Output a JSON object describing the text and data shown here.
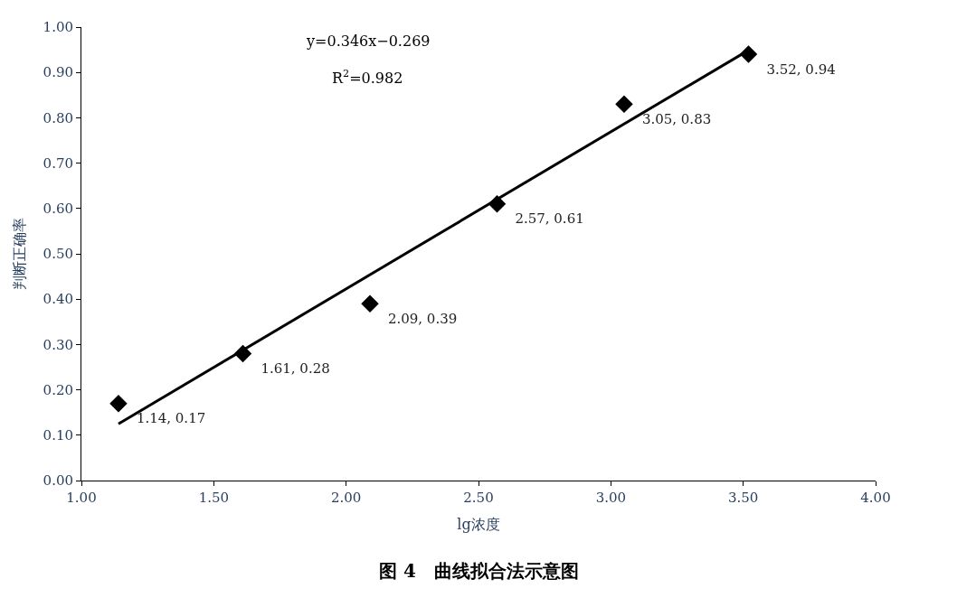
{
  "chart_data": {
    "type": "scatter",
    "xlabel": "lg浓度",
    "ylabel": "判断正确率",
    "x": [
      1.14,
      1.61,
      2.09,
      2.57,
      3.05,
      3.52
    ],
    "series": [
      {
        "color": "#000000",
        "marker": "diamond",
        "values": [
          0.17,
          0.28,
          0.39,
          0.61,
          0.83,
          0.94
        ],
        "value_labels": [
          "1.14, 0.17",
          "1.61, 0.28",
          "2.09, 0.39",
          "2.57, 0.61",
          "3.05, 0.83",
          "3.52, 0.94"
        ]
      },
      {
        "type": "line",
        "color": "#000000",
        "x": [
          1.14,
          3.52
        ],
        "values": [
          0.125,
          0.949
        ],
        "marker": "none",
        "line_style": "solid"
      }
    ],
    "xlim": [
      1,
      4
    ],
    "xticks": [
      {
        "value": 1,
        "label": "1.00"
      },
      {
        "value": 1.5,
        "label": "1.50"
      },
      {
        "value": 2,
        "label": "2.00"
      },
      {
        "value": 2.5,
        "label": "2.50"
      },
      {
        "value": 3,
        "label": "3.00"
      },
      {
        "value": 3.5,
        "label": "3.50"
      },
      {
        "value": 4,
        "label": "4.00"
      }
    ],
    "ylim": [
      0,
      1
    ],
    "yticks": [
      {
        "value": 0,
        "label": "0.00"
      },
      {
        "value": 0.1,
        "label": "0.10"
      },
      {
        "value": 0.2,
        "label": "0.20"
      },
      {
        "value": 0.3,
        "label": "0.30"
      },
      {
        "value": 0.4,
        "label": "0.40"
      },
      {
        "value": 0.5,
        "label": "0.50"
      },
      {
        "value": 0.6,
        "label": "0.60"
      },
      {
        "value": 0.7,
        "label": "0.70"
      },
      {
        "value": 0.8,
        "label": "0.80"
      },
      {
        "value": 0.9,
        "label": "0.90"
      },
      {
        "value": 1,
        "label": "1.00"
      }
    ],
    "annotations": [
      "y=0.346x−0.269",
      "R$^{2}$=0.982",
      "图 4　曲线拟合法示意图"
    ]
  }
}
